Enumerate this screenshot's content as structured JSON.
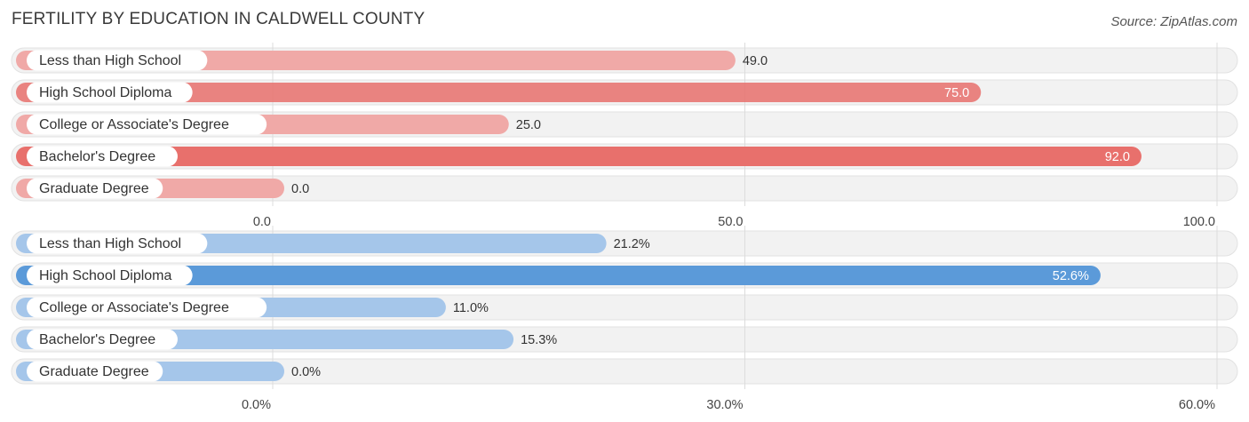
{
  "header": {
    "title": "FERTILITY BY EDUCATION IN CALDWELL COUNTY",
    "source": "Source: ZipAtlas.com"
  },
  "chart_data": [
    {
      "type": "bar",
      "orientation": "horizontal",
      "categories": [
        "Less than High School",
        "High School Diploma",
        "College or Associate's Degree",
        "Bachelor's Degree",
        "Graduate Degree"
      ],
      "values": [
        49.0,
        75.0,
        25.0,
        92.0,
        0.0
      ],
      "value_labels": [
        "49.0",
        "75.0",
        "25.0",
        "92.0",
        "0.0"
      ],
      "xlim": [
        0,
        100
      ],
      "ticks": [
        0,
        50,
        100
      ],
      "tick_labels": [
        "0.0",
        "50.0",
        "100.0"
      ],
      "grid": true,
      "colors": {
        "strong": "#e8706c",
        "light": "#f0a9a7",
        "track": "#efefef"
      }
    },
    {
      "type": "bar",
      "orientation": "horizontal",
      "categories": [
        "Less than High School",
        "High School Diploma",
        "College or Associate's Degree",
        "Bachelor's Degree",
        "Graduate Degree"
      ],
      "values": [
        21.2,
        52.6,
        11.0,
        15.3,
        0.0
      ],
      "value_labels": [
        "21.2%",
        "52.6%",
        "11.0%",
        "15.3%",
        "0.0%"
      ],
      "xlim": [
        0,
        60
      ],
      "ticks": [
        0,
        30,
        60
      ],
      "tick_labels": [
        "0.0%",
        "30.0%",
        "60.0%"
      ],
      "grid": true,
      "colors": {
        "strong": "#5b9ad9",
        "light": "#a5c6ea",
        "track": "#efefef"
      }
    }
  ]
}
